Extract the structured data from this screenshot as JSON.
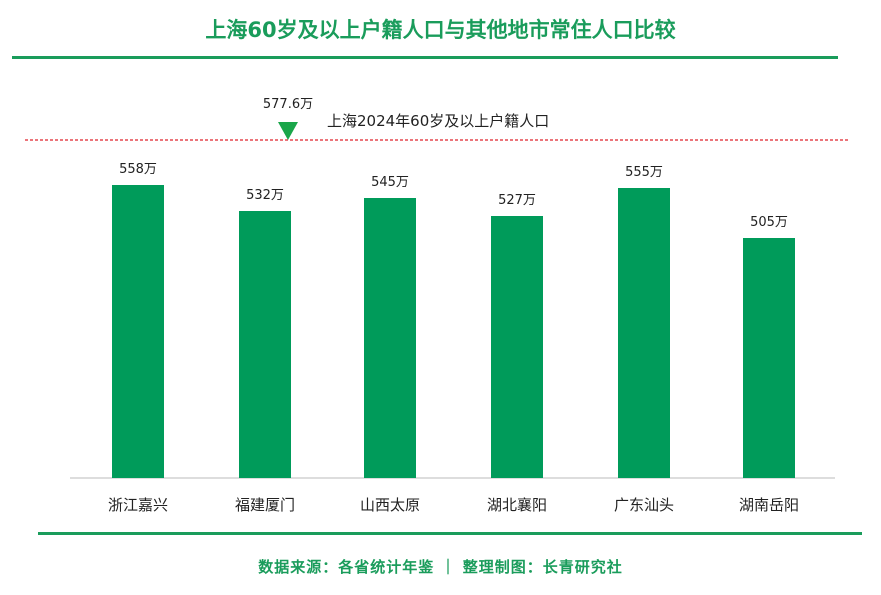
{
  "title": "上海60岁及以上户籍人口与其他地市常住人口比较",
  "source": "数据来源：各省统计年鉴 ｜ 整理制图：长青研究社",
  "colors": {
    "bar": "#009b5a",
    "title": "#1a9c5b",
    "refline": "#e0202a"
  },
  "chart_data": {
    "type": "bar",
    "categories": [
      "浙江嘉兴",
      "福建厦门",
      "山西太原",
      "湖北襄阳",
      "广东汕头",
      "湖南岳阳"
    ],
    "values": [
      558,
      532,
      545,
      527,
      555,
      505
    ],
    "value_labels": [
      "558万",
      "532万",
      "545万",
      "527万",
      "555万",
      "505万"
    ],
    "unit": "万",
    "reference": {
      "value": 577.6,
      "value_label": "577.6万",
      "label": "上海2024年60岁及以上户籍人口"
    },
    "ylim": [
      265,
      600
    ]
  }
}
